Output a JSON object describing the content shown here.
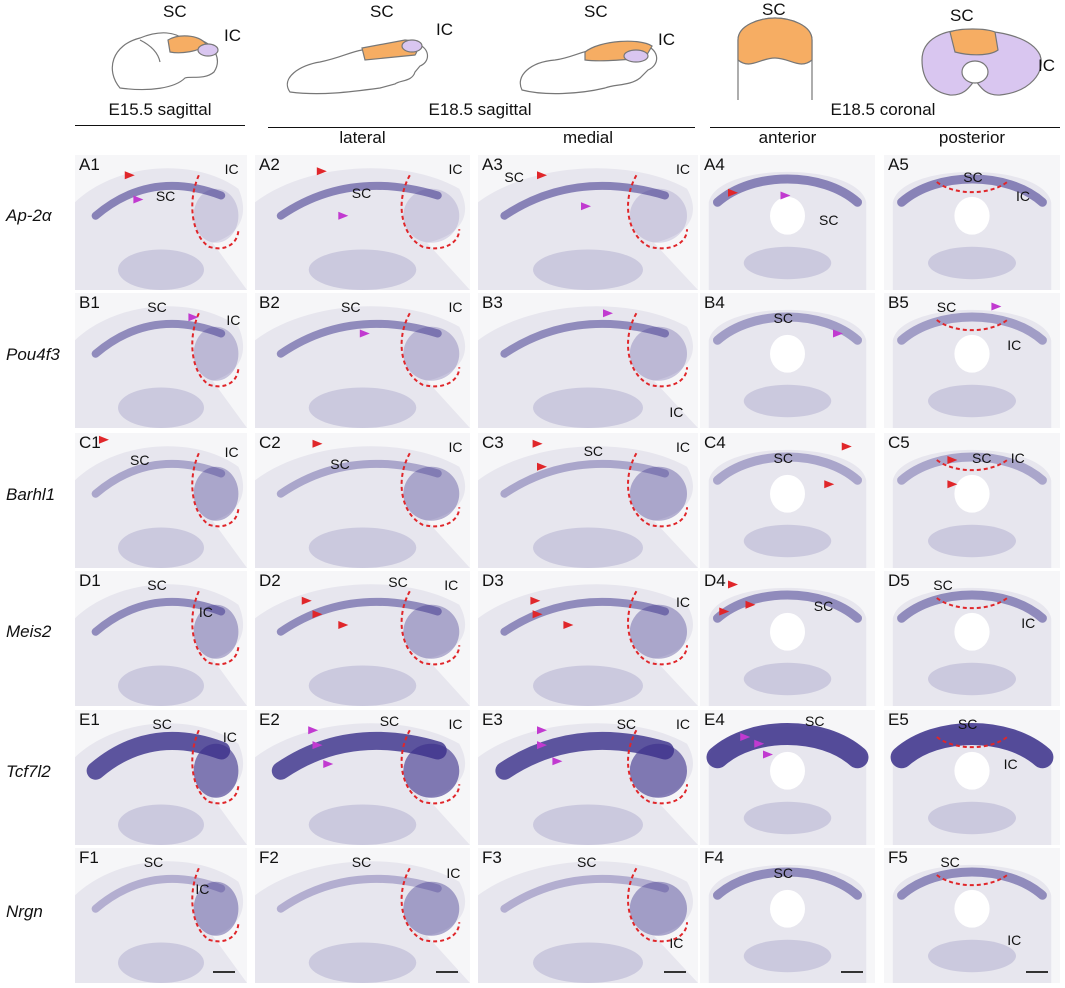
{
  "figure": {
    "schematic_labels": {
      "sc": "SC",
      "ic": "IC"
    },
    "group_headers": [
      {
        "id": "e155",
        "text": "E15.5 sagittal"
      },
      {
        "id": "e185s",
        "text": "E18.5 sagittal"
      },
      {
        "id": "e185c",
        "text": "E18.5 coronal"
      }
    ],
    "sub_headers": [
      {
        "id": "lateral",
        "text": "lateral"
      },
      {
        "id": "medial",
        "text": "medial"
      },
      {
        "id": "anterior",
        "text": "anterior"
      },
      {
        "id": "posterior",
        "text": "posterior"
      }
    ],
    "genes": [
      "Ap-2α",
      "Pou4f3",
      "Barhl1",
      "Meis2",
      "Tcf7l2",
      "Nrgn"
    ],
    "rows": [
      "A",
      "B",
      "C",
      "D",
      "E",
      "F"
    ],
    "cols": [
      "1",
      "2",
      "3",
      "4",
      "5"
    ],
    "colors": {
      "stain": "#3a2f8a",
      "tissue": "#e7e6ee",
      "tissue_dark": "#b9b6d4",
      "background": "#f6f6f8",
      "outline_dash": "#e0262a",
      "arrow_red": "#e0262a",
      "arrow_magenta": "#c13ad0",
      "schematic_sc": "#f6ad63",
      "schematic_ic": "#d9c6f0"
    }
  }
}
